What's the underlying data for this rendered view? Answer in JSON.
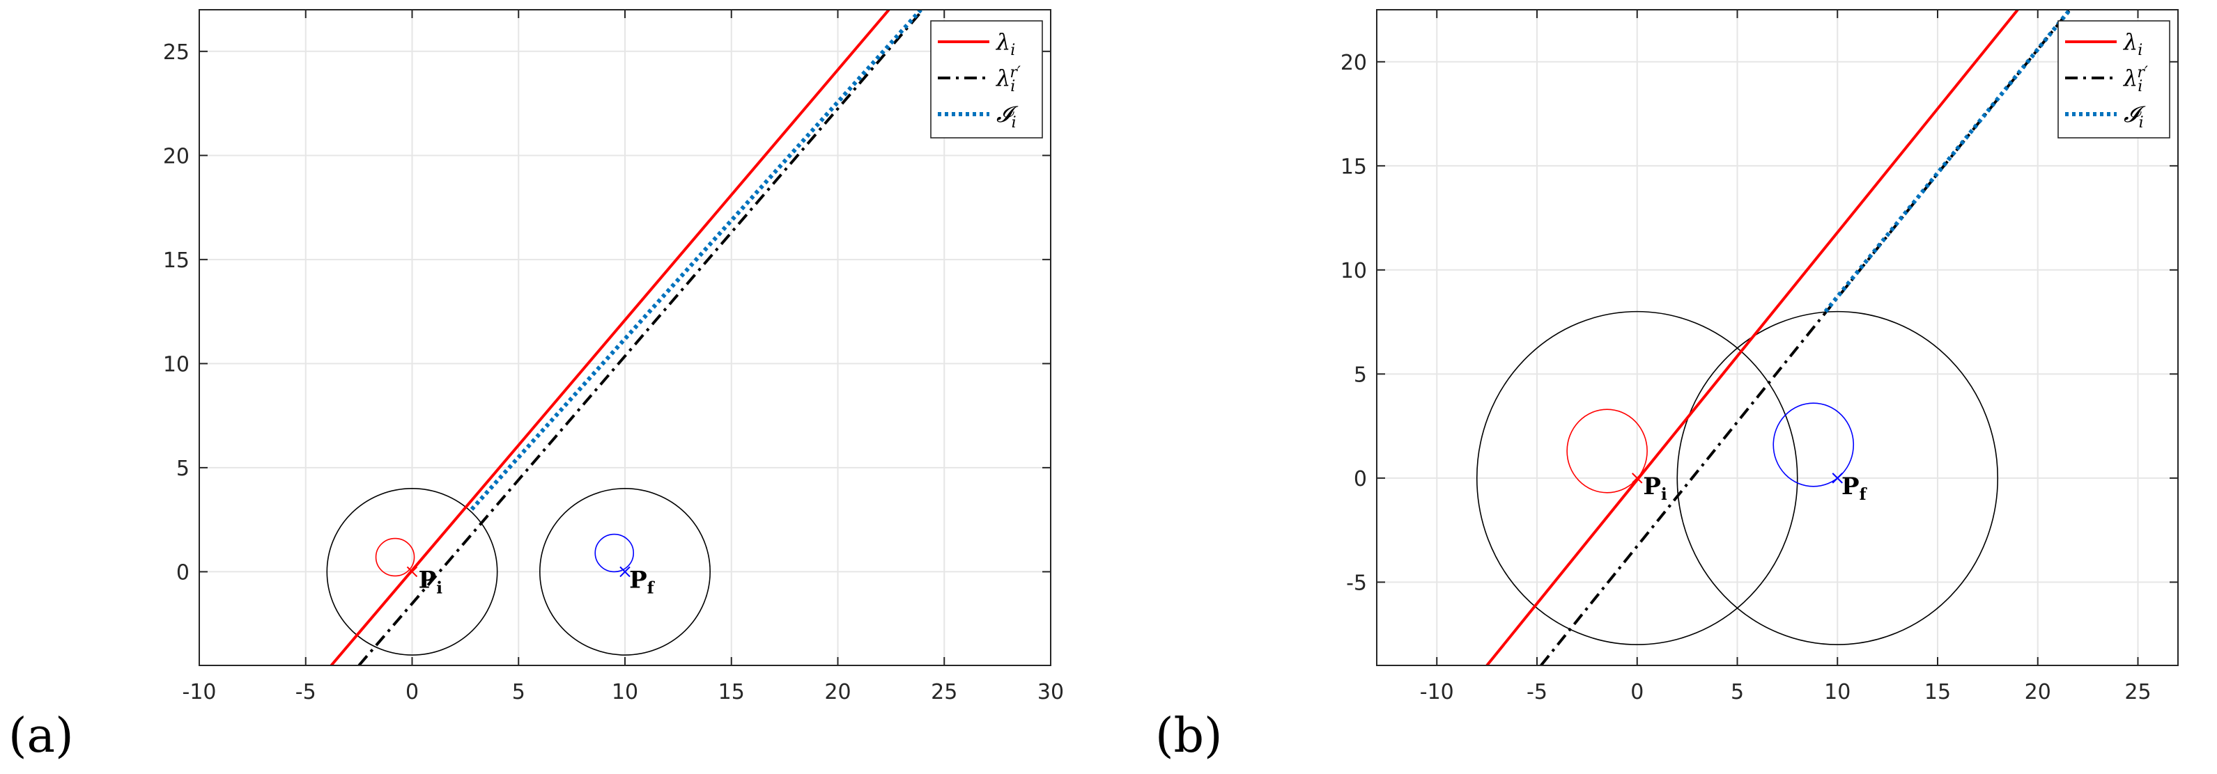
{
  "panels": [
    {
      "label": "(a)"
    },
    {
      "label": "(b)"
    }
  ],
  "chart_data": [
    {
      "type": "line",
      "title": "",
      "xlabel": "",
      "ylabel": "",
      "xlim": [
        -10,
        30
      ],
      "ylim": [
        -4.5,
        27
      ],
      "xticks": [
        -10,
        -5,
        0,
        5,
        10,
        15,
        20,
        25,
        30
      ],
      "yticks": [
        0,
        5,
        10,
        15,
        20,
        25
      ],
      "grid": true,
      "legend_position": "top-right",
      "series": [
        {
          "name": "λ_i",
          "color": "#ff0000",
          "style": "solid",
          "x": [
            -3.8,
            22.4
          ],
          "y": [
            -4.5,
            27
          ]
        },
        {
          "name": "λ_i^{r′}",
          "color": "#000000",
          "style": "dashdot",
          "x": [
            -2.5,
            24.0
          ],
          "y": [
            -4.5,
            27
          ]
        },
        {
          "name": "𝓘_i",
          "color": "#0072bd",
          "style": "dotted",
          "x": [
            2.8,
            23.9
          ],
          "y": [
            3.0,
            27
          ]
        }
      ],
      "circles": [
        {
          "cx": 0,
          "cy": 0,
          "r": 4,
          "color": "#000000"
        },
        {
          "cx": 10,
          "cy": 0,
          "r": 4,
          "color": "#000000"
        },
        {
          "cx": -0.8,
          "cy": 0.7,
          "r": 0.9,
          "color": "#ff0000"
        },
        {
          "cx": 9.5,
          "cy": 0.9,
          "r": 0.9,
          "color": "#0000ff"
        }
      ],
      "markers": [
        {
          "x": 0,
          "y": 0,
          "color": "#ff0000"
        },
        {
          "x": 10,
          "y": 0,
          "color": "#0000ff"
        }
      ],
      "annotations": [
        {
          "x": 0.3,
          "y": -0.3,
          "main": "P",
          "sub": "i"
        },
        {
          "x": 10.2,
          "y": -0.3,
          "main": "P",
          "sub": "f"
        }
      ]
    },
    {
      "type": "line",
      "title": "",
      "xlabel": "",
      "ylabel": "",
      "xlim": [
        -13,
        27
      ],
      "ylim": [
        -9,
        22.5
      ],
      "xticks": [
        -10,
        -5,
        0,
        5,
        10,
        15,
        20,
        25
      ],
      "yticks": [
        -5,
        0,
        5,
        10,
        15,
        20
      ],
      "grid": true,
      "legend_position": "top-right",
      "series": [
        {
          "name": "λ_i",
          "color": "#ff0000",
          "style": "solid",
          "x": [
            -7.5,
            19.0
          ],
          "y": [
            -9,
            22.5
          ]
        },
        {
          "name": "λ_i^{r′}",
          "color": "#000000",
          "style": "dashdot",
          "x": [
            -4.8,
            21.6
          ],
          "y": [
            -9,
            22.5
          ]
        },
        {
          "name": "𝓘_i",
          "color": "#0072bd",
          "style": "dotted",
          "x": [
            9.4,
            21.6
          ],
          "y": [
            8.0,
            22.5
          ]
        }
      ],
      "circles": [
        {
          "cx": 0,
          "cy": 0,
          "r": 8,
          "color": "#000000"
        },
        {
          "cx": 10,
          "cy": 0,
          "r": 8,
          "color": "#000000"
        },
        {
          "cx": -1.5,
          "cy": 1.3,
          "r": 2.0,
          "color": "#ff0000"
        },
        {
          "cx": 8.8,
          "cy": 1.6,
          "r": 2.0,
          "color": "#0000ff"
        }
      ],
      "markers": [
        {
          "x": 0,
          "y": 0,
          "color": "#ff0000"
        },
        {
          "x": 10,
          "y": 0,
          "color": "#0000ff"
        }
      ],
      "annotations": [
        {
          "x": 0.3,
          "y": -0.3,
          "main": "P",
          "sub": "i"
        },
        {
          "x": 10.2,
          "y": -0.3,
          "main": "P",
          "sub": "f"
        }
      ]
    }
  ]
}
